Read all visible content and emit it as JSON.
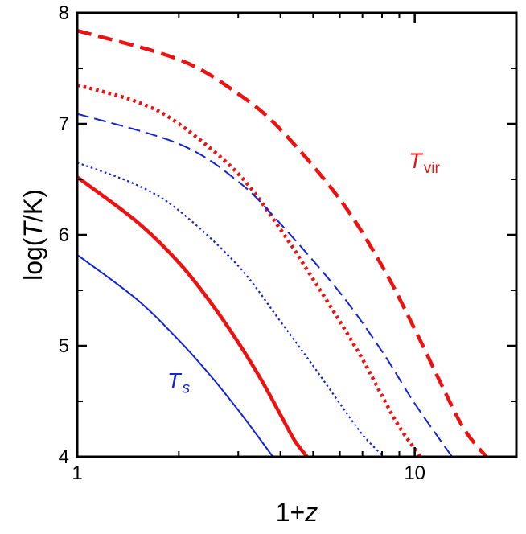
{
  "chart_data": {
    "type": "line",
    "title": "",
    "xlabel": {
      "main": "1+",
      "italic": "z"
    },
    "ylabel": {
      "pre": "log(",
      "italic": "T",
      "post": "/K)"
    },
    "x_scale": "log",
    "xlim": [
      1,
      20
    ],
    "ylim": [
      4,
      8
    ],
    "x_ticks": [
      1,
      10
    ],
    "x_tick_labels": [
      "1",
      "10"
    ],
    "y_ticks": [
      4,
      5,
      6,
      7,
      8
    ],
    "y_tick_labels": [
      "4",
      "5",
      "6",
      "7",
      "8"
    ],
    "grid": false,
    "series": [
      {
        "group": "vir",
        "style": "thick-dashed",
        "color": "#ee1111",
        "x": [
          1,
          2,
          3,
          4,
          6,
          8,
          10,
          12,
          14,
          16.3
        ],
        "y": [
          7.84,
          7.58,
          7.27,
          6.95,
          6.32,
          5.72,
          5.15,
          4.65,
          4.25,
          4.0
        ]
      },
      {
        "group": "vir",
        "style": "thick-dotted",
        "color": "#ee1111",
        "x": [
          1,
          1.5,
          2,
          3,
          4,
          5,
          6,
          7,
          8,
          9,
          10.4
        ],
        "y": [
          7.35,
          7.2,
          7.0,
          6.55,
          6.05,
          5.6,
          5.22,
          4.88,
          4.55,
          4.27,
          4.0
        ]
      },
      {
        "group": "vir",
        "style": "thick-solid",
        "color": "#ee1111",
        "x": [
          1,
          1.5,
          2,
          2.5,
          3,
          3.5,
          4,
          4.4,
          4.8
        ],
        "y": [
          6.52,
          6.12,
          5.75,
          5.38,
          5.03,
          4.7,
          4.38,
          4.15,
          4.0
        ]
      },
      {
        "group": "s",
        "style": "thin-dashed",
        "color": "#1122dd",
        "x": [
          1,
          2,
          3,
          4,
          6,
          8,
          10,
          12.9
        ],
        "y": [
          7.09,
          6.82,
          6.48,
          6.1,
          5.48,
          4.95,
          4.48,
          4.0
        ]
      },
      {
        "group": "s",
        "style": "thin-dotted",
        "color": "#1122dd",
        "x": [
          1,
          1.5,
          2,
          3,
          4,
          5,
          6,
          7,
          8.1
        ],
        "y": [
          6.65,
          6.45,
          6.22,
          5.72,
          5.22,
          4.82,
          4.48,
          4.2,
          4.0
        ]
      },
      {
        "group": "s",
        "style": "thin-solid",
        "color": "#1122dd",
        "x": [
          1,
          1.5,
          2,
          2.5,
          3,
          3.4,
          3.8
        ],
        "y": [
          5.82,
          5.42,
          5.05,
          4.72,
          4.42,
          4.2,
          4.0
        ]
      }
    ],
    "annotations": [
      {
        "key": "vir",
        "main": "T",
        "sub": "vir",
        "sub_italic": false,
        "color": "#ee1111",
        "x": 9.6,
        "y": 6.6
      },
      {
        "key": "s",
        "main": "T",
        "sub": "s",
        "sub_italic": true,
        "color": "#1122dd",
        "x": 1.85,
        "y": 4.62
      }
    ]
  }
}
